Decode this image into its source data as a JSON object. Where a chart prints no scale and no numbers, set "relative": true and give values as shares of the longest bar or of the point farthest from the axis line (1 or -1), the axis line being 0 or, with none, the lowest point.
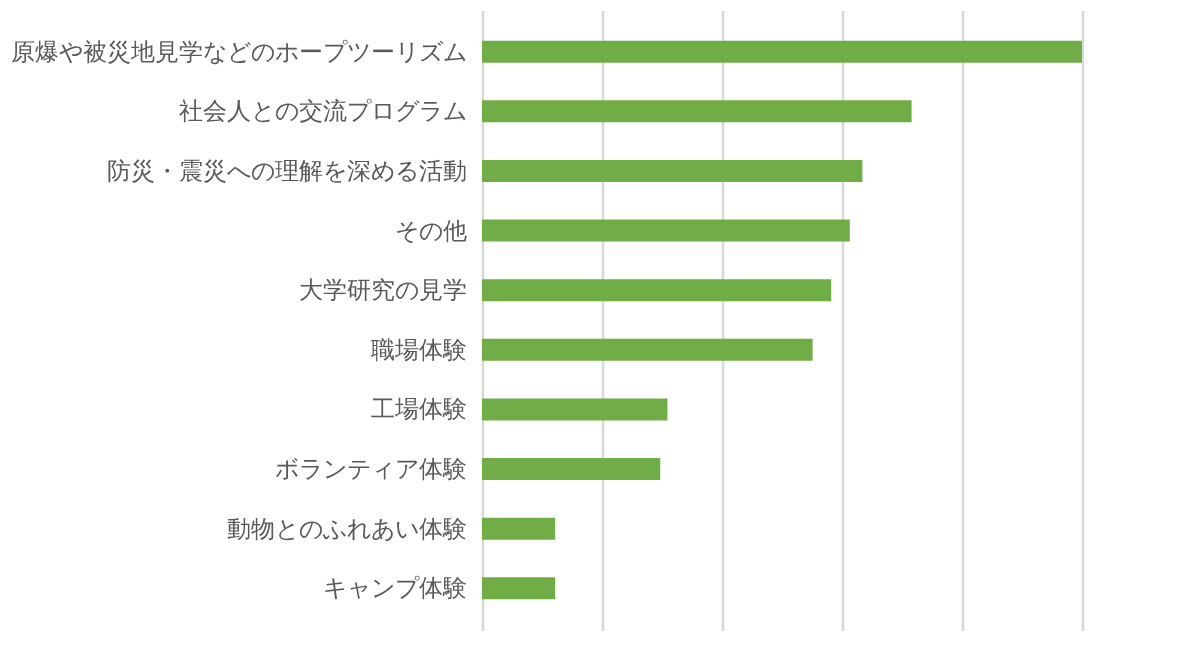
{
  "chart_data": {
    "type": "bar",
    "orientation": "horizontal",
    "relative": true,
    "grid": "x",
    "categories": [
      "原爆や被災地見学などのホープツーリズム",
      "社会人との交流プログラム",
      "防災・震災への理解を深める活動",
      "その他",
      "大学研究の見学",
      "職場体験",
      "工場体験",
      "ボランティア体験",
      "動物とのふれあい体験",
      "キャンプ体験"
    ],
    "values": [
      1,
      0.716,
      0.634,
      0.613,
      0.582,
      0.551,
      0.309,
      0.297,
      0.122,
      0.122
    ],
    "color": "#70ad47"
  }
}
